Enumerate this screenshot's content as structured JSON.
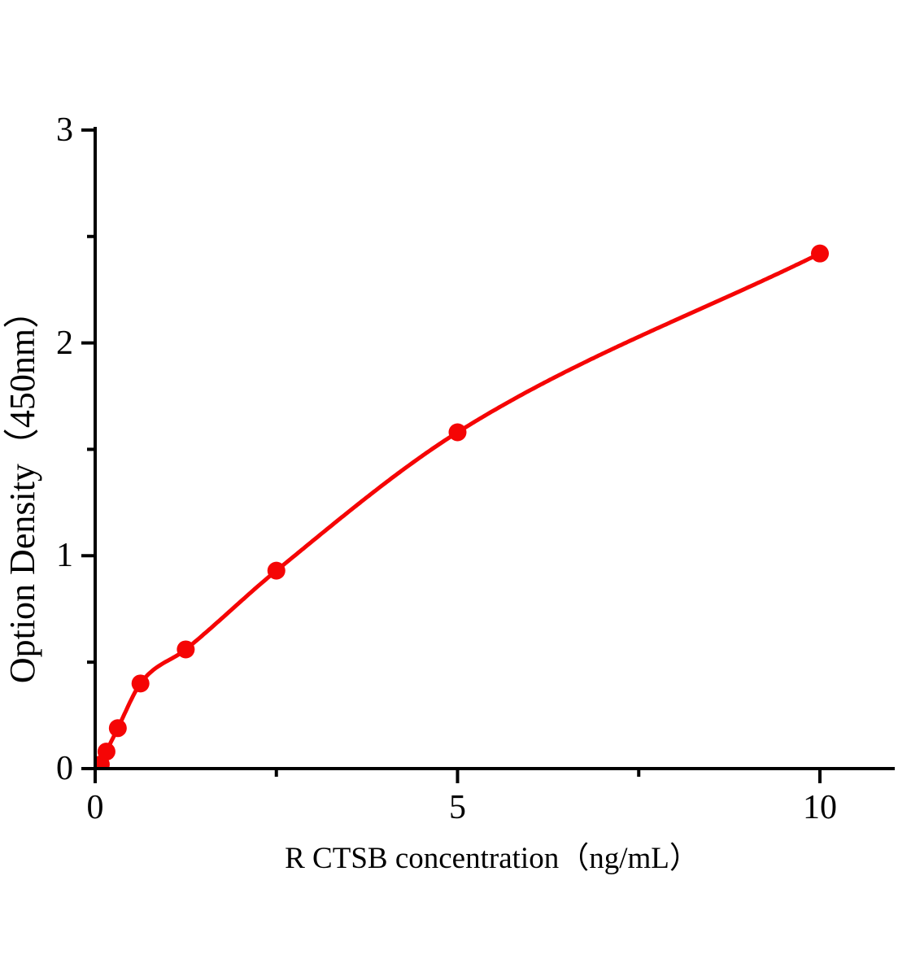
{
  "chart_data": {
    "type": "scatter",
    "title": "",
    "xlabel": "R CTSB concentration（ng/mL）",
    "ylabel": "Option Density（450nm）",
    "x": [
      0.078,
      0.156,
      0.3125,
      0.625,
      1.25,
      2.5,
      5,
      10
    ],
    "y": [
      0.02,
      0.08,
      0.19,
      0.4,
      0.56,
      0.93,
      1.58,
      2.42
    ],
    "curve_starts_at_origin": true,
    "xlim": [
      0,
      11
    ],
    "ylim": [
      0,
      3
    ],
    "x_major_ticks": [
      0,
      5,
      10
    ],
    "x_major_tick_labels": [
      "0",
      "5",
      "10"
    ],
    "x_minor_ticks": [
      2.5,
      7.5
    ],
    "y_major_ticks": [
      0,
      1,
      2,
      3
    ],
    "y_major_tick_labels": [
      "0",
      "1",
      "2",
      "3"
    ],
    "y_minor_ticks": [
      0.5,
      1.5,
      2.5
    ],
    "grid": false,
    "legend": null,
    "colors": {
      "series": "#f50505",
      "axis": "#000000",
      "background": "#ffffff"
    }
  }
}
